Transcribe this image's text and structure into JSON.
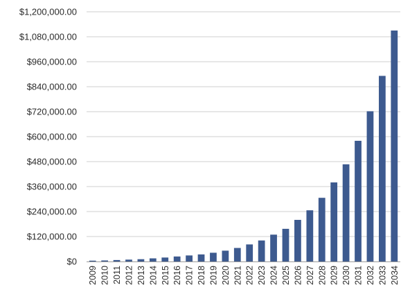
{
  "chart_data": {
    "type": "bar",
    "title": "",
    "xlabel": "",
    "ylabel": "",
    "ylim": [
      0,
      1200000
    ],
    "grid": true,
    "bar_color": "#3d5a8f",
    "grid_color": "#cfcfcf",
    "categories": [
      "2009",
      "2010",
      "2011",
      "2012",
      "2013",
      "2014",
      "2015",
      "2016",
      "2017",
      "2018",
      "2019",
      "2020",
      "2021",
      "2022",
      "2023",
      "2024",
      "2025",
      "2026",
      "2027",
      "2028",
      "2029",
      "2030",
      "2031",
      "2032",
      "2033",
      "2034"
    ],
    "values": [
      4000,
      5000,
      7000,
      9000,
      11000,
      15000,
      19000,
      24000,
      29000,
      34000,
      42000,
      52000,
      65000,
      82000,
      101000,
      129000,
      157000,
      200000,
      246000,
      306000,
      380000,
      467000,
      580000,
      722000,
      892000,
      1110000
    ],
    "y_ticks": [
      {
        "value": 0,
        "label": "$0"
      },
      {
        "value": 120000,
        "label": "$120,000.00"
      },
      {
        "value": 240000,
        "label": "$240,000.00"
      },
      {
        "value": 360000,
        "label": "$360,000.00"
      },
      {
        "value": 480000,
        "label": "$480,000.00"
      },
      {
        "value": 600000,
        "label": "$600,000.00"
      },
      {
        "value": 720000,
        "label": "$720,000.00"
      },
      {
        "value": 840000,
        "label": "$840,000.00"
      },
      {
        "value": 960000,
        "label": "$960,000.00"
      },
      {
        "value": 1080000,
        "label": "$1,080,000.00"
      },
      {
        "value": 1200000,
        "label": "$1,200,000.00"
      }
    ]
  }
}
